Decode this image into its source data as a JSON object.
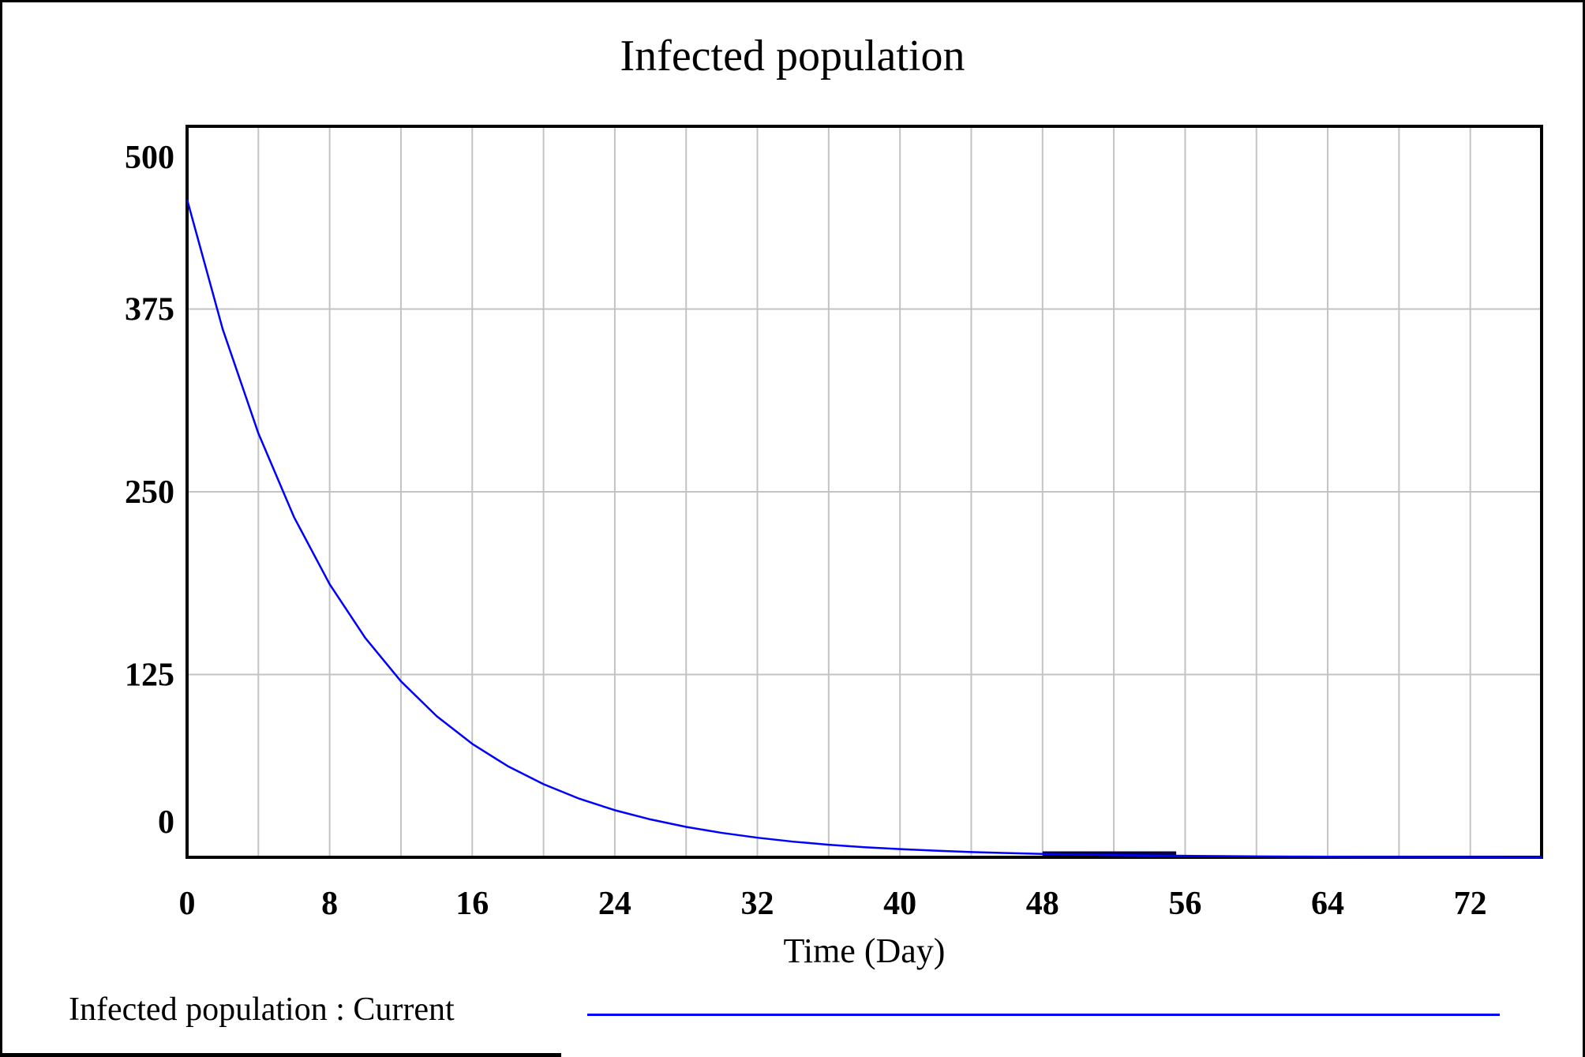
{
  "window": {
    "background": "#ffffff"
  },
  "chart": {
    "title": "Infected population",
    "xlabel": "Time (Day)",
    "legend": [
      {
        "label": "Infected population : Current",
        "color": "#0000ff"
      }
    ]
  },
  "chart_data": {
    "type": "line",
    "title": "Infected population",
    "xlabel": "Time (Day)",
    "ylabel": "",
    "xlim": [
      0,
      76
    ],
    "ylim": [
      0,
      500
    ],
    "x_ticks": [
      0,
      8,
      16,
      24,
      32,
      40,
      48,
      56,
      64,
      72
    ],
    "x_grid_step": 4,
    "y_ticks": [
      0,
      125,
      250,
      375,
      500
    ],
    "grid": true,
    "legend_position": "bottom-left",
    "series": [
      {
        "name": "Infected population : Current",
        "color": "#0000ff",
        "x": [
          0,
          2,
          4,
          6,
          8,
          10,
          12,
          14,
          16,
          18,
          20,
          22,
          24,
          26,
          28,
          30,
          32,
          34,
          36,
          38,
          40,
          42,
          44,
          46,
          48,
          50,
          52,
          54,
          56,
          58,
          60,
          62,
          64,
          66,
          68,
          70,
          72,
          74,
          76
        ],
        "y": [
          450.0,
          361.2,
          290.0,
          232.7,
          186.8,
          150.0,
          120.4,
          96.6,
          77.6,
          62.3,
          50.0,
          40.1,
          32.2,
          25.9,
          20.8,
          16.7,
          13.4,
          10.7,
          8.6,
          6.9,
          5.6,
          4.5,
          3.6,
          2.9,
          2.3,
          1.8,
          1.5,
          1.2,
          1.0,
          0.8,
          0.6,
          0.5,
          0.4,
          0.3,
          0.3,
          0.2,
          0.2,
          0.1,
          0.1
        ]
      }
    ],
    "dark_overlap_segment": {
      "t_start": 48,
      "t_end": 55.5
    }
  },
  "colors": {
    "grid": "#c3c3c3",
    "frame": "#000000",
    "curve": "#0000ff",
    "text": "#000000"
  }
}
